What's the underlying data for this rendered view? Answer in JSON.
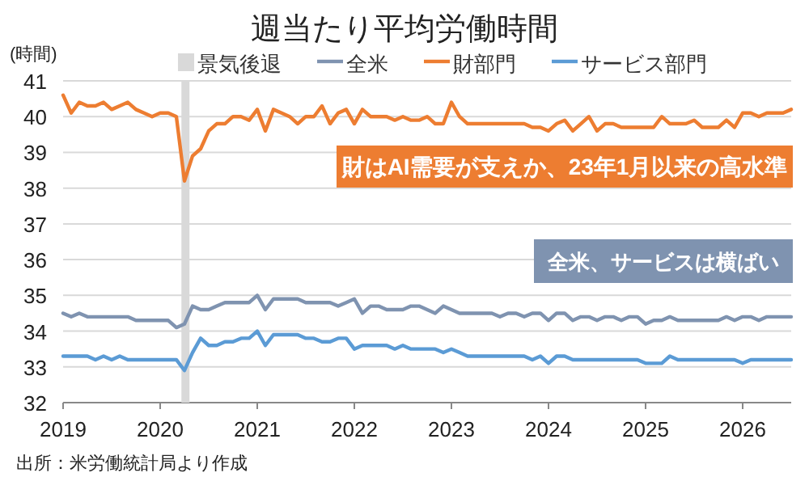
{
  "chart_data": {
    "type": "line",
    "title": "週当たり平均労働時間",
    "ylabel": "(時間)",
    "x": [
      "2019-01",
      "2019-02",
      "2019-03",
      "2019-04",
      "2019-05",
      "2019-06",
      "2019-07",
      "2019-08",
      "2019-09",
      "2019-10",
      "2019-11",
      "2019-12",
      "2020-01",
      "2020-02",
      "2020-03",
      "2020-04",
      "2020-05",
      "2020-06",
      "2020-07",
      "2020-08",
      "2020-09",
      "2020-10",
      "2020-11",
      "2020-12",
      "2021-01",
      "2021-02",
      "2021-03",
      "2021-04",
      "2021-05",
      "2021-06",
      "2021-07",
      "2021-08",
      "2021-09",
      "2021-10",
      "2021-11",
      "2021-12",
      "2022-01",
      "2022-02",
      "2022-03",
      "2022-04",
      "2022-05",
      "2022-06",
      "2022-07",
      "2022-08",
      "2022-09",
      "2022-10",
      "2022-11",
      "2022-12",
      "2023-01",
      "2023-02",
      "2023-03",
      "2023-04",
      "2023-05",
      "2023-06",
      "2023-07",
      "2023-08",
      "2023-09",
      "2023-10",
      "2023-11",
      "2023-12",
      "2024-01",
      "2024-02",
      "2024-03",
      "2024-04",
      "2024-05",
      "2024-06",
      "2024-07",
      "2024-08",
      "2024-09",
      "2024-10",
      "2024-11",
      "2024-12",
      "2025-01",
      "2025-02",
      "2025-03",
      "2025-04",
      "2025-05",
      "2025-06",
      "2025-07",
      "2025-08",
      "2025-09",
      "2025-10",
      "2025-11",
      "2025-12",
      "2026-01",
      "2026-02",
      "2026-03",
      "2026-04",
      "2026-05",
      "2026-06",
      "2026-07"
    ],
    "series": [
      {
        "name": "全米",
        "color": "#7f93b0",
        "values": [
          34.5,
          34.4,
          34.5,
          34.4,
          34.4,
          34.4,
          34.4,
          34.4,
          34.4,
          34.3,
          34.3,
          34.3,
          34.3,
          34.3,
          34.1,
          34.2,
          34.7,
          34.6,
          34.6,
          34.7,
          34.8,
          34.8,
          34.8,
          34.8,
          35.0,
          34.6,
          34.9,
          34.9,
          34.9,
          34.9,
          34.8,
          34.8,
          34.8,
          34.8,
          34.7,
          34.8,
          34.9,
          34.5,
          34.7,
          34.7,
          34.6,
          34.6,
          34.6,
          34.7,
          34.7,
          34.6,
          34.5,
          34.7,
          34.6,
          34.5,
          34.5,
          34.5,
          34.5,
          34.5,
          34.4,
          34.5,
          34.5,
          34.4,
          34.5,
          34.5,
          34.3,
          34.5,
          34.5,
          34.3,
          34.4,
          34.4,
          34.3,
          34.4,
          34.4,
          34.3,
          34.4,
          34.4,
          34.2,
          34.3,
          34.3,
          34.4,
          34.3,
          34.3,
          34.3,
          34.3,
          34.3,
          34.3,
          34.4,
          34.3,
          34.4,
          34.4,
          34.3,
          34.4,
          34.4,
          34.4,
          34.4
        ]
      },
      {
        "name": "財部門",
        "color": "#ed7d31",
        "values": [
          40.6,
          40.1,
          40.4,
          40.3,
          40.3,
          40.4,
          40.2,
          40.3,
          40.4,
          40.2,
          40.1,
          40.0,
          40.1,
          40.1,
          40.0,
          38.2,
          38.9,
          39.1,
          39.6,
          39.8,
          39.8,
          40.0,
          40.0,
          39.9,
          40.2,
          39.6,
          40.2,
          40.1,
          40.0,
          39.8,
          40.0,
          40.0,
          40.3,
          39.8,
          40.1,
          40.2,
          39.8,
          40.2,
          40.0,
          40.0,
          40.0,
          39.9,
          40.0,
          39.9,
          39.9,
          40.0,
          39.8,
          39.8,
          40.4,
          40.0,
          39.8,
          39.8,
          39.8,
          39.8,
          39.8,
          39.8,
          39.8,
          39.8,
          39.7,
          39.7,
          39.6,
          39.8,
          39.9,
          39.6,
          39.8,
          40.0,
          39.6,
          39.8,
          39.8,
          39.7,
          39.7,
          39.7,
          39.7,
          39.7,
          40.0,
          39.8,
          39.8,
          39.8,
          39.9,
          39.7,
          39.7,
          39.7,
          39.9,
          39.7,
          40.1,
          40.1,
          40.0,
          40.1,
          40.1,
          40.1,
          40.2
        ]
      },
      {
        "name": "サービス部門",
        "color": "#5b9bd5",
        "values": [
          33.3,
          33.3,
          33.3,
          33.3,
          33.2,
          33.3,
          33.2,
          33.3,
          33.2,
          33.2,
          33.2,
          33.2,
          33.2,
          33.2,
          33.2,
          32.9,
          33.4,
          33.8,
          33.6,
          33.6,
          33.7,
          33.7,
          33.8,
          33.8,
          34.0,
          33.6,
          33.9,
          33.9,
          33.9,
          33.9,
          33.8,
          33.8,
          33.7,
          33.7,
          33.8,
          33.8,
          33.5,
          33.6,
          33.6,
          33.6,
          33.6,
          33.5,
          33.6,
          33.5,
          33.5,
          33.5,
          33.5,
          33.4,
          33.5,
          33.4,
          33.3,
          33.3,
          33.3,
          33.3,
          33.3,
          33.3,
          33.3,
          33.3,
          33.2,
          33.3,
          33.1,
          33.3,
          33.3,
          33.2,
          33.2,
          33.2,
          33.2,
          33.2,
          33.2,
          33.2,
          33.2,
          33.2,
          33.1,
          33.1,
          33.1,
          33.3,
          33.2,
          33.2,
          33.2,
          33.2,
          33.2,
          33.2,
          33.2,
          33.2,
          33.1,
          33.2,
          33.2,
          33.2,
          33.2,
          33.2,
          33.2
        ]
      }
    ],
    "bands": [
      {
        "axis": "x",
        "from": "2020-03-20",
        "to": "2020-04-20",
        "label": "景気後退",
        "color": "#d9d9d9"
      }
    ],
    "annotations": [
      "財はAI需要が支えか、23年1月以来の高水準",
      "全米、サービスは横ばい",
      "出所：米労働統計局より作成"
    ],
    "xlim": [
      "2019-01",
      "2026-07"
    ],
    "xticks": [
      "2019",
      "2020",
      "2021",
      "2022",
      "2023",
      "2024",
      "2025",
      "2026"
    ],
    "ylim": [
      32,
      41
    ],
    "yticks": [
      32,
      33,
      34,
      35,
      36,
      37,
      38,
      39,
      40,
      41
    ],
    "grid": "y",
    "legend": "top",
    "marker": "none",
    "line_style": "solid"
  }
}
